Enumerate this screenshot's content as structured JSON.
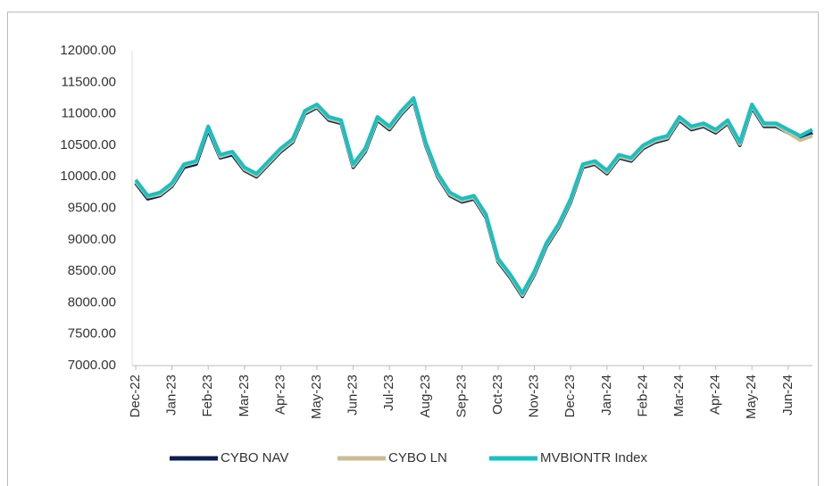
{
  "chart_data": {
    "type": "line",
    "categories": [
      "Dec-22",
      null,
      null,
      "Jan-23",
      null,
      null,
      "Feb-23",
      null,
      null,
      "Mar-23",
      null,
      null,
      "Apr-23",
      null,
      null,
      "May-23",
      null,
      null,
      "Jun-23",
      null,
      null,
      "Jul-23",
      null,
      null,
      "Aug-23",
      null,
      null,
      "Sep-23",
      null,
      null,
      "Oct-23",
      null,
      null,
      "Nov-23",
      null,
      null,
      "Dec-23",
      null,
      null,
      "Jan-24",
      null,
      null,
      "Feb-24",
      null,
      null,
      "Mar-24",
      null,
      null,
      "Apr-24",
      null,
      null,
      "May-24",
      null,
      null,
      "Jun-24",
      null,
      null
    ],
    "series": [
      {
        "name": "CYBO NAV",
        "color": "#0b1f4f",
        "values": [
          9900,
          9650,
          9700,
          9850,
          10150,
          10200,
          10750,
          10300,
          10350,
          10100,
          10000,
          10200,
          10400,
          10550,
          11000,
          11100,
          10900,
          10850,
          10150,
          10400,
          10900,
          10750,
          11000,
          11200,
          10500,
          10000,
          9700,
          9600,
          9650,
          9350,
          8650,
          8400,
          8100,
          8450,
          8900,
          9200,
          9600,
          10150,
          10200,
          10050,
          10300,
          10250,
          10450,
          10550,
          10600,
          10900,
          10750,
          10800,
          10700,
          10850,
          10500,
          11100,
          10800,
          10800,
          10700,
          10600,
          10700
        ]
      },
      {
        "name": "CYBO LN",
        "color": "#c8bd96",
        "values": [
          9920,
          9680,
          9720,
          9870,
          10180,
          10230,
          10780,
          10320,
          10380,
          10120,
          10020,
          10220,
          10420,
          10570,
          11020,
          11120,
          10920,
          10870,
          10170,
          10420,
          10920,
          10770,
          11020,
          11220,
          10520,
          10020,
          9720,
          9620,
          9670,
          9370,
          8670,
          8420,
          8120,
          8470,
          8920,
          9220,
          9620,
          10170,
          10220,
          10070,
          10320,
          10270,
          10470,
          10570,
          10620,
          10920,
          10770,
          10820,
          10720,
          10870,
          10520,
          11120,
          10820,
          10820,
          10700,
          10580,
          10650
        ]
      },
      {
        "name": "MVBIONTR Index",
        "color": "#17c1c1",
        "values": [
          9950,
          9700,
          9750,
          9900,
          10200,
          10250,
          10800,
          10350,
          10400,
          10150,
          10050,
          10250,
          10450,
          10600,
          11050,
          11150,
          10950,
          10900,
          10200,
          10450,
          10950,
          10800,
          11050,
          11250,
          10550,
          10050,
          9750,
          9650,
          9700,
          9400,
          8700,
          8450,
          8150,
          8500,
          8950,
          9250,
          9650,
          10200,
          10250,
          10100,
          10350,
          10300,
          10500,
          10600,
          10650,
          10950,
          10800,
          10850,
          10750,
          10900,
          10550,
          11150,
          10850,
          10850,
          10750,
          10650,
          10750
        ]
      }
    ],
    "ylim": [
      7000,
      12000
    ],
    "yticks": [
      {
        "value": 7000,
        "label": "7000.00"
      },
      {
        "value": 7500,
        "label": "7500.00"
      },
      {
        "value": 8000,
        "label": "8000.00"
      },
      {
        "value": 8500,
        "label": "8500.00"
      },
      {
        "value": 9000,
        "label": "9000.00"
      },
      {
        "value": 9500,
        "label": "9500.00"
      },
      {
        "value": 10000,
        "label": "10000.00"
      },
      {
        "value": 10500,
        "label": "10500.00"
      },
      {
        "value": 11000,
        "label": "11000.00"
      },
      {
        "value": 11500,
        "label": "11500.00"
      },
      {
        "value": 12000,
        "label": "12000.00"
      }
    ],
    "grid": false,
    "legend": "bottom"
  }
}
